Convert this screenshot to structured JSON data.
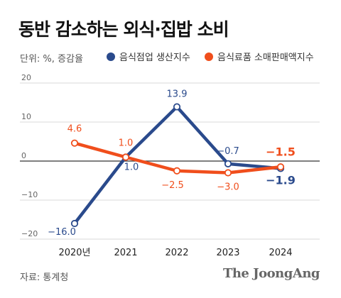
{
  "header": {
    "title": "동반 감소하는 외식·집밥 소비",
    "unit": "단위: %, 증감율"
  },
  "colors": {
    "blue": "#2a4a8c",
    "orange": "#f04e1c",
    "axis": "#333333",
    "grid": "#d9d9d9"
  },
  "chart_data": {
    "type": "line",
    "categories": [
      "2020년",
      "2021",
      "2022",
      "2023",
      "2024"
    ],
    "ylim": [
      -20,
      20
    ],
    "yticks": [
      20,
      10,
      0,
      -10,
      -20
    ],
    "ytick_labels": [
      "20",
      "10",
      "0",
      "−10",
      "−20"
    ],
    "series": [
      {
        "name": "음식점업 생산지수",
        "color": "#2a4a8c",
        "values": [
          -16.0,
          1.0,
          13.9,
          -0.7,
          -1.9
        ],
        "labels": [
          "−16.0",
          "1.0",
          "13.9",
          "−0.7",
          "−1.9"
        ]
      },
      {
        "name": "음식료품 소매판매액지수",
        "color": "#f04e1c",
        "values": [
          4.6,
          1.0,
          -2.5,
          -3.0,
          -1.5
        ],
        "labels": [
          "4.6",
          "1.0",
          "−2.5",
          "−3.0",
          "−1.5"
        ]
      }
    ]
  },
  "footer": {
    "source": "자료: 통계청",
    "brand": "The JoongAng"
  }
}
